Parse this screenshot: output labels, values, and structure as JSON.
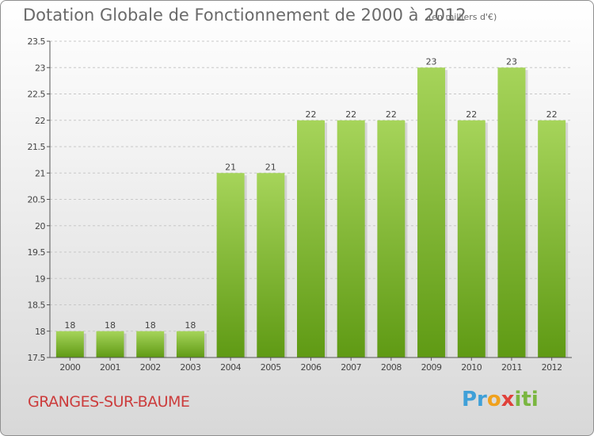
{
  "title": "Dotation Globale de Fonctionnement de 2000 à 2012",
  "subtitle": "(en milliers d'€)",
  "commune": "GRANGES-SUR-BAUME",
  "logo": {
    "parts": [
      "Pr",
      "o",
      "x",
      "iti"
    ]
  },
  "colors": {
    "bar_top": "#a6d45a",
    "bar_bottom": "#5f9a14",
    "title": "#6a6a6a",
    "commune": "#cc3c3c",
    "grid": "#c8c8c8"
  },
  "chart_data": {
    "type": "bar",
    "categories": [
      "2000",
      "2001",
      "2002",
      "2003",
      "2004",
      "2005",
      "2006",
      "2007",
      "2008",
      "2009",
      "2010",
      "2011",
      "2012"
    ],
    "values": [
      18,
      18,
      18,
      18,
      21,
      21,
      22,
      22,
      22,
      23,
      22,
      23,
      22
    ],
    "ylim": [
      17.5,
      23.5
    ],
    "yticks": [
      "17.5",
      "18",
      "18.5",
      "19",
      "19.5",
      "20",
      "20.5",
      "21",
      "21.5",
      "22",
      "22.5",
      "23",
      "23.5"
    ],
    "grid": true,
    "data_labels": true
  }
}
